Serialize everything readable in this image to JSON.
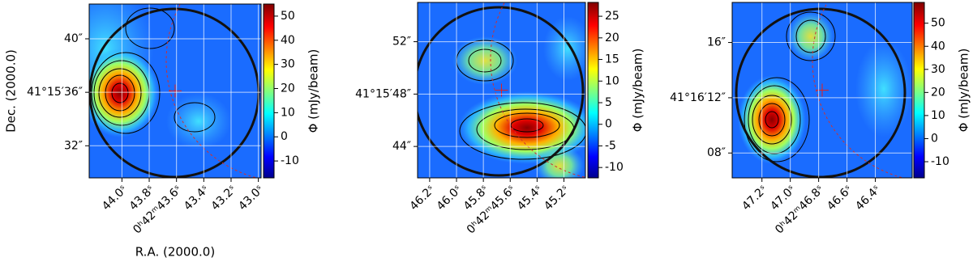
{
  "chart_data": [
    {
      "type": "heatmap",
      "xlabel": "R.A. (2000.0)",
      "ylabel": "Dec. (2000.0)",
      "colorbar_label": "Φ (mJy/beam)",
      "xlim": [
        44.24,
        42.98
      ],
      "ylim": [
        29.6,
        42.6
      ],
      "xticks": [
        {
          "value": 44.0,
          "label": "44.0ˢ"
        },
        {
          "value": 43.8,
          "label": "43.8ˢ"
        },
        {
          "value": 43.6,
          "label": "0ʰ42ᵐ43.6ˢ"
        },
        {
          "value": 43.4,
          "label": "43.4ˢ"
        },
        {
          "value": 43.2,
          "label": "43.2ˢ"
        },
        {
          "value": 43.0,
          "label": "43.0ˢ"
        }
      ],
      "yticks": [
        {
          "value": 40,
          "label": "40″"
        },
        {
          "value": 36,
          "label": "41°15′36″"
        },
        {
          "value": 32,
          "label": "32″"
        }
      ],
      "clim": [
        -17,
        55
      ],
      "cticks": [
        -10,
        0,
        10,
        20,
        30,
        40,
        50
      ]
    },
    {
      "type": "heatmap",
      "colorbar_label": "Φ (mJy/beam)",
      "xlim": [
        46.29,
        45.04
      ],
      "ylim": [
        41.6,
        55.0
      ],
      "xticks": [
        {
          "value": 46.2,
          "label": "46.2ˢ"
        },
        {
          "value": 46.0,
          "label": "46.0ˢ"
        },
        {
          "value": 45.8,
          "label": "45.8ˢ"
        },
        {
          "value": 45.6,
          "label": "0ʰ42ᵐ45.6ˢ"
        },
        {
          "value": 45.4,
          "label": "45.4ˢ"
        },
        {
          "value": 45.2,
          "label": "45.2ˢ"
        }
      ],
      "yticks": [
        {
          "value": 52,
          "label": "52″"
        },
        {
          "value": 48,
          "label": "41°15′48″"
        },
        {
          "value": 44,
          "label": "44″"
        }
      ],
      "clim": [
        -12.4,
        28.2
      ],
      "cticks": [
        -10,
        -5,
        0,
        5,
        10,
        15,
        20,
        25
      ]
    },
    {
      "type": "heatmap",
      "colorbar_label": "Φ (mJy/beam)",
      "xlim": [
        47.41,
        46.14
      ],
      "ylim": [
        6.2,
        18.9
      ],
      "xticks": [
        {
          "value": 47.2,
          "label": "47.2ˢ"
        },
        {
          "value": 47.0,
          "label": "47.0ˢ"
        },
        {
          "value": 46.8,
          "label": "0ʰ42ᵐ46.8ˢ"
        },
        {
          "value": 46.6,
          "label": "46.6ˢ"
        },
        {
          "value": 46.4,
          "label": "46.4ˢ"
        }
      ],
      "yticks": [
        {
          "value": 16,
          "label": "16″"
        },
        {
          "value": 12,
          "label": "41°16′12″"
        },
        {
          "value": 8,
          "label": "08″"
        }
      ],
      "clim": [
        -17,
        59
      ],
      "cticks": [
        -10,
        0,
        10,
        20,
        30,
        40,
        50
      ]
    }
  ]
}
